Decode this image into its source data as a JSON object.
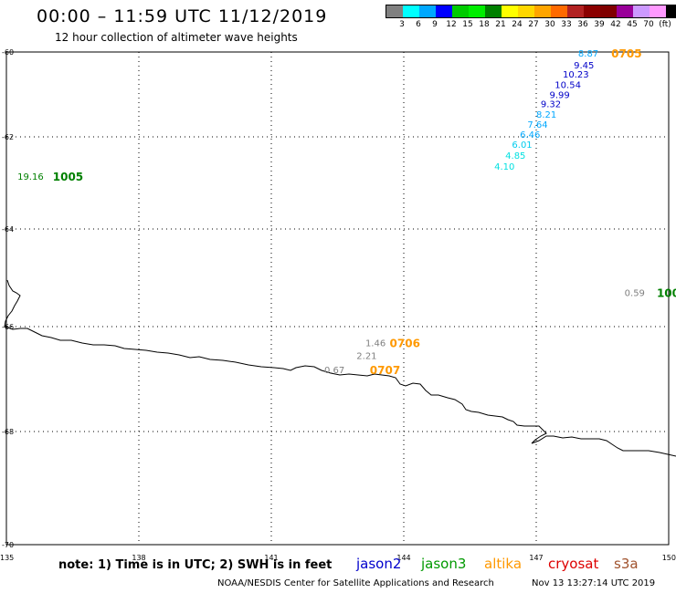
{
  "header": {
    "title": "00:00 – 11:59 UTC 11/12/2019",
    "subtitle": "12 hour collection of altimeter wave heights"
  },
  "legend": {
    "colors": [
      "#808080",
      "#00ffff",
      "#00a8ff",
      "#0000ff",
      "#00cc00",
      "#00ee00",
      "#008000",
      "#ffff00",
      "#ffd700",
      "#ffa500",
      "#ff6a00",
      "#b22222",
      "#8b0000",
      "#800000",
      "#990099",
      "#cc99ff",
      "#ff99ff",
      "#000000"
    ],
    "labels": [
      "3",
      "6",
      "9",
      "12",
      "15",
      "18",
      "21",
      "24",
      "27",
      "30",
      "33",
      "36",
      "39",
      "42",
      "45",
      "70",
      "(ft)"
    ]
  },
  "chart_data": {
    "type": "map",
    "lon_range": [
      135,
      150
    ],
    "lat_range": [
      -60,
      -70
    ],
    "lat_ticks": [
      "-60",
      "-62",
      "-64",
      "-66",
      "-68",
      "-70"
    ],
    "lon_ticks": [
      "135",
      "138",
      "141",
      "144",
      "147",
      "150"
    ],
    "grid": "dotted",
    "observations": [
      {
        "value": "8.87",
        "lon": 147.95,
        "lat": -60.02,
        "color": "#00a8ff"
      },
      {
        "value": "9.45",
        "lon": 147.85,
        "lat": -60.3,
        "color": "#0000c8"
      },
      {
        "value": "10.23",
        "lon": 147.6,
        "lat": -60.52,
        "color": "#0000c8"
      },
      {
        "value": "10.54",
        "lon": 147.42,
        "lat": -60.76,
        "color": "#0000c8"
      },
      {
        "value": "9.99",
        "lon": 147.3,
        "lat": -61.0,
        "color": "#0000c8"
      },
      {
        "value": "9.32",
        "lon": 147.1,
        "lat": -61.22,
        "color": "#0000c8"
      },
      {
        "value": "8.21",
        "lon": 147.0,
        "lat": -61.46,
        "color": "#00a8ff"
      },
      {
        "value": "7.64",
        "lon": 146.8,
        "lat": -61.7,
        "color": "#00a8ff"
      },
      {
        "value": "6.46",
        "lon": 146.63,
        "lat": -61.94,
        "color": "#00a8ff"
      },
      {
        "value": "6.01",
        "lon": 146.45,
        "lat": -62.16,
        "color": "#00ccee"
      },
      {
        "value": "4.85",
        "lon": 146.3,
        "lat": -62.4,
        "color": "#00e0e0"
      },
      {
        "value": "4.10",
        "lon": 146.05,
        "lat": -62.63,
        "color": "#00e0e0"
      },
      {
        "value": "19.16",
        "lon": 135.25,
        "lat": -62.85,
        "color": "#008000"
      },
      {
        "value": "0.59",
        "lon": 149.0,
        "lat": -65.3,
        "color": "#808080"
      },
      {
        "value": "1.46",
        "lon": 143.13,
        "lat": -66.3,
        "color": "#808080"
      },
      {
        "value": "2.21",
        "lon": 142.93,
        "lat": -66.55,
        "color": "#808080"
      },
      {
        "value": "0.67",
        "lon": 142.2,
        "lat": -66.82,
        "color": "#808080"
      }
    ],
    "pass_labels": [
      {
        "label": "0705",
        "lon": 148.7,
        "lat": -60.02,
        "color": "#ff9900"
      },
      {
        "label": "1005",
        "lon": 136.05,
        "lat": -62.85,
        "color": "#008000"
      },
      {
        "label": "100",
        "lon": 149.73,
        "lat": -65.3,
        "color": "#008000"
      },
      {
        "label": "0706",
        "lon": 143.68,
        "lat": -66.3,
        "color": "#ff9900"
      },
      {
        "label": "0707",
        "lon": 143.23,
        "lat": -66.82,
        "color": "#ff9900"
      }
    ]
  },
  "footer": {
    "note": "note: 1) Time is in UTC; 2) SWH is in feet",
    "satellites": [
      {
        "name": "jason2",
        "color": "#0000cc"
      },
      {
        "name": "jason3",
        "color": "#009900"
      },
      {
        "name": "altika",
        "color": "#ff9900"
      },
      {
        "name": "cryosat",
        "color": "#dd0000"
      },
      {
        "name": "s3a",
        "color": "#a0522d"
      }
    ],
    "credit": "NOAA/NESDIS Center for Satellite Applications and Research",
    "timestamp": "Nov 13 13:27:14 UTC 2019"
  }
}
